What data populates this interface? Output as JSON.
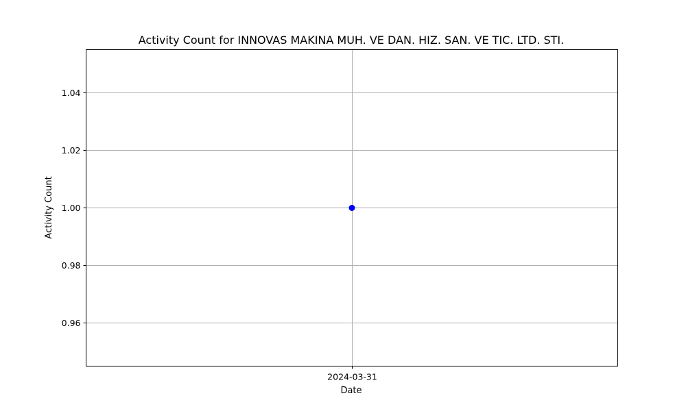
{
  "chart_data": {
    "type": "line",
    "title": "Activity Count for INNOVAS MAKINA MUH. VE DAN. HIZ. SAN. VE TIC. LTD. STI.",
    "xlabel": "Date",
    "ylabel": "Activity Count",
    "x": [
      "2024-03-31"
    ],
    "series": [
      {
        "values": [
          1
        ],
        "color": "#0000ff",
        "marker": "circle"
      }
    ],
    "xticks": [
      "2024-03-31"
    ],
    "yticks": [
      "0.96",
      "0.98",
      "1.00",
      "1.02",
      "1.04"
    ],
    "ylim": [
      0.945,
      1.055
    ],
    "grid": true
  }
}
